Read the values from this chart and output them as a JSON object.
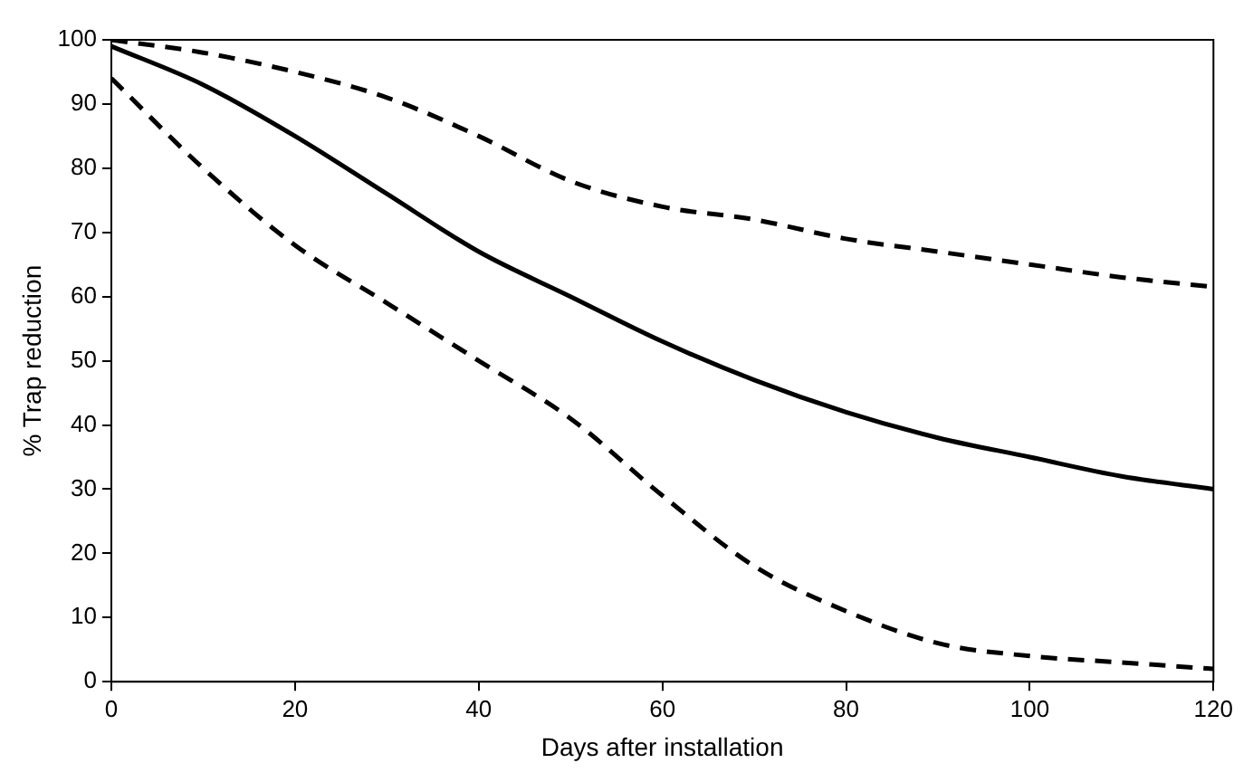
{
  "chart_data": {
    "type": "line",
    "xlabel": "Days after installation",
    "ylabel": "% Trap reduction",
    "x": [
      0,
      10,
      20,
      30,
      40,
      50,
      60,
      70,
      80,
      90,
      100,
      110,
      120
    ],
    "xlim": [
      0,
      120
    ],
    "xticks": [
      0,
      20,
      40,
      60,
      80,
      100,
      120
    ],
    "ylim": [
      0,
      100
    ],
    "yticks": [
      0,
      10,
      20,
      30,
      40,
      50,
      60,
      70,
      80,
      90,
      100
    ],
    "grid": false,
    "legend": false,
    "marker": "none",
    "series": [
      {
        "color": "#000000",
        "line_style": "solid",
        "values": [
          99,
          93,
          85,
          76,
          67,
          60,
          53,
          47,
          42,
          38,
          35,
          32,
          30
        ]
      },
      {
        "color": "#000000",
        "line_style": "dashed",
        "values": [
          100,
          98,
          95,
          91,
          85,
          78,
          74,
          72,
          69,
          67,
          65,
          63,
          61.5
        ]
      },
      {
        "color": "#000000",
        "line_style": "dashed",
        "values": [
          94,
          80,
          68,
          59,
          50,
          41,
          29,
          18,
          11,
          6,
          4,
          3,
          2
        ]
      }
    ]
  }
}
